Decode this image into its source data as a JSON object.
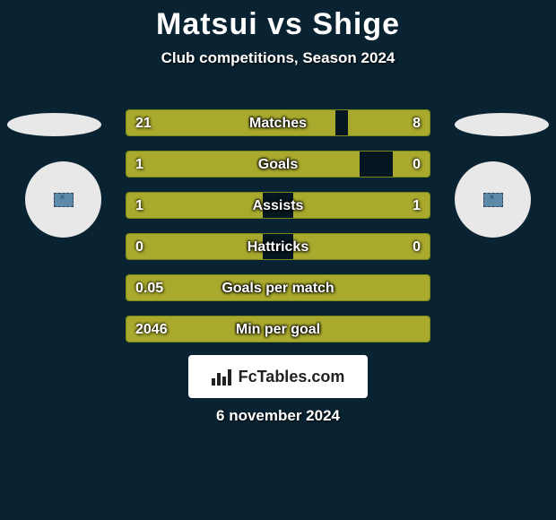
{
  "title_left": "Matsui",
  "title_vs": "vs",
  "title_right": "Shige",
  "subtitle": "Club competitions, Season 2024",
  "date": "6 november 2024",
  "branding": "FcTables.com",
  "colors": {
    "background": "#0a2332",
    "bar_fill": "#a9a92d",
    "bar_mid": "rgba(0,0,0,0.35)",
    "avatar_bg": "#e8e8e8",
    "text": "#ffffff"
  },
  "rows": [
    {
      "label": "Matches",
      "left": "21",
      "right": "8",
      "left_pct": 69,
      "right_pct": 27
    },
    {
      "label": "Goals",
      "left": "1",
      "right": "0",
      "left_pct": 77,
      "right_pct": 12
    },
    {
      "label": "Assists",
      "left": "1",
      "right": "1",
      "left_pct": 45,
      "right_pct": 45
    },
    {
      "label": "Hattricks",
      "left": "0",
      "right": "0",
      "left_pct": 45,
      "right_pct": 45
    },
    {
      "label": "Goals per match",
      "left": "0.05",
      "right": "",
      "left_pct": 100,
      "right_pct": 0
    },
    {
      "label": "Min per goal",
      "left": "2046",
      "right": "",
      "left_pct": 100,
      "right_pct": 0
    }
  ]
}
